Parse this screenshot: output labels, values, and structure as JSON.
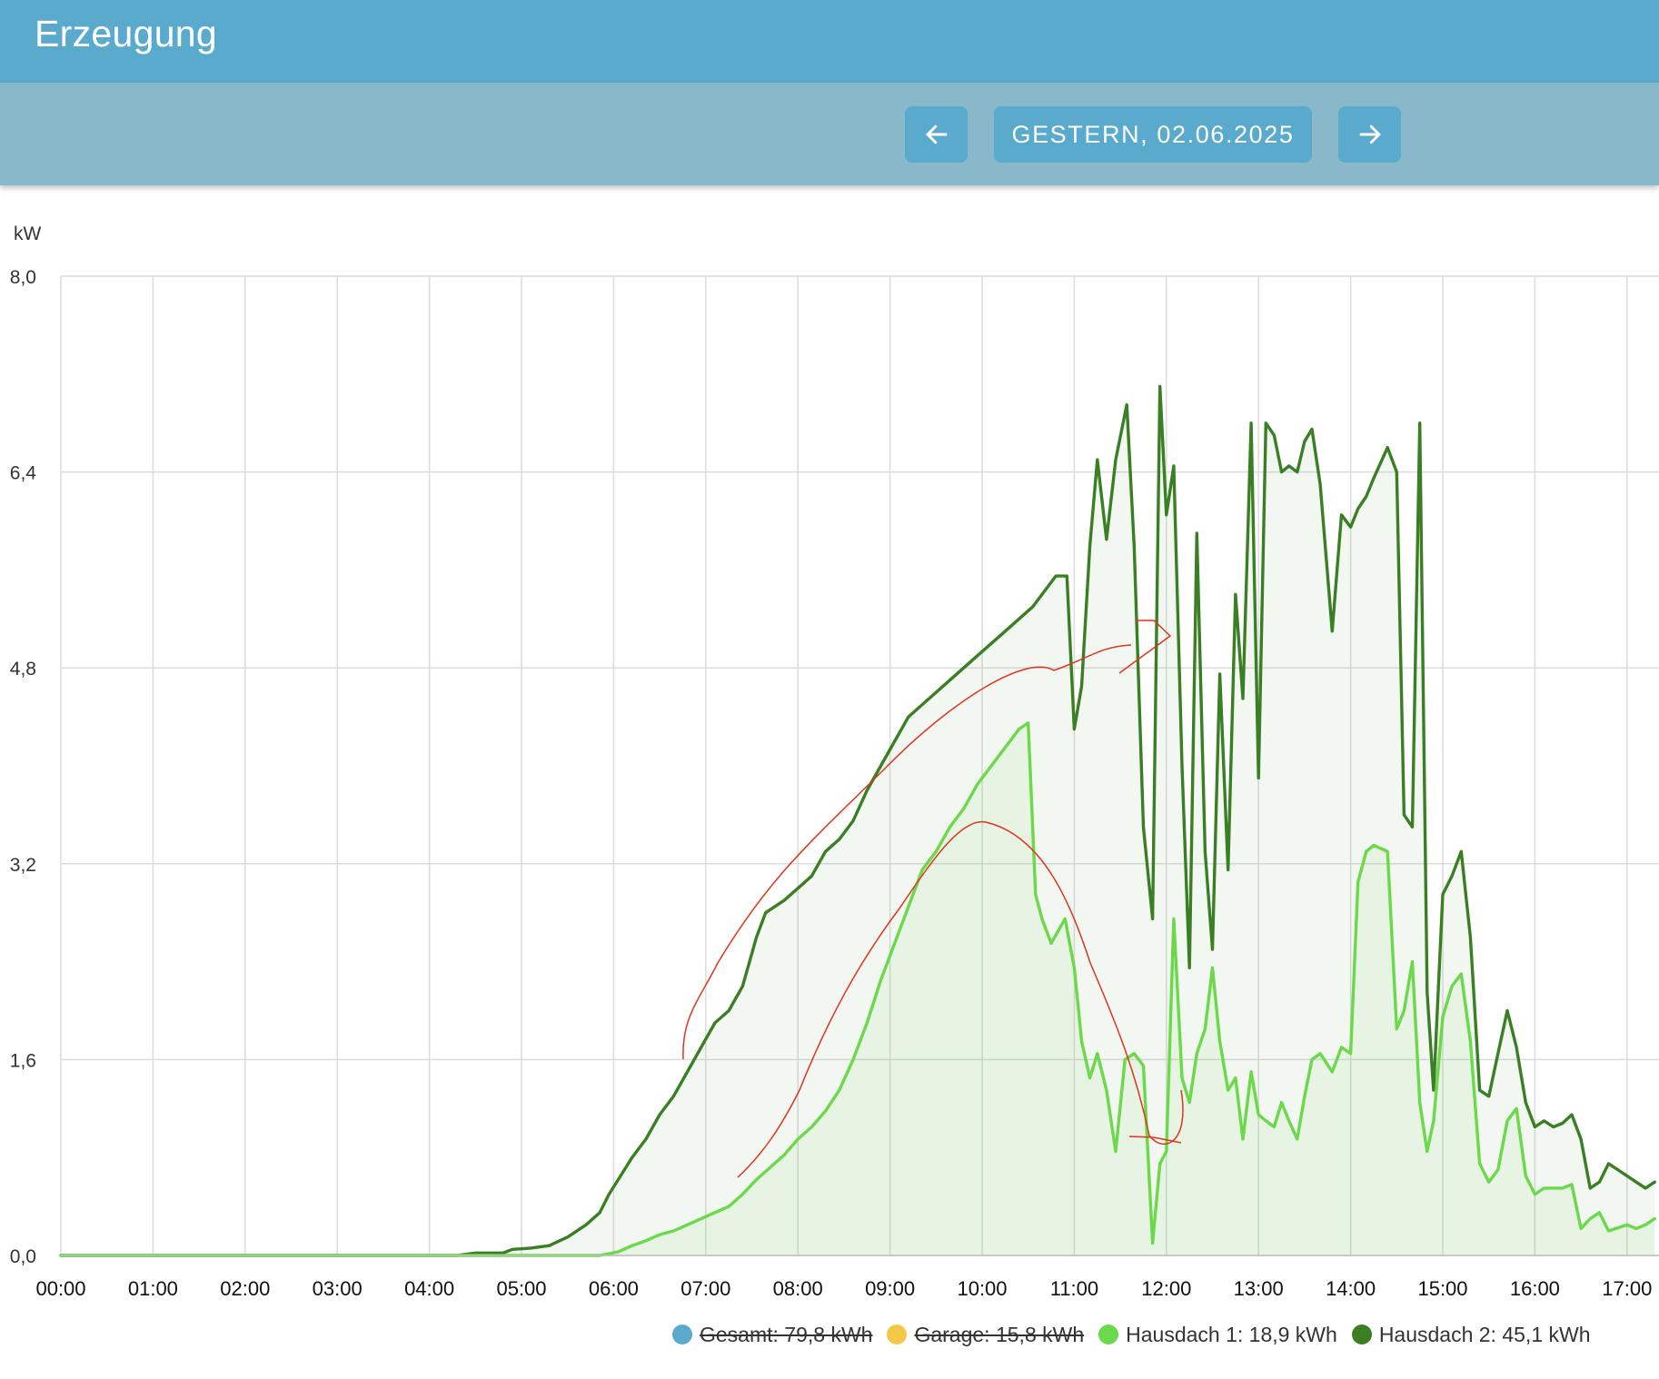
{
  "header": {
    "title": "Erzeugung"
  },
  "nav": {
    "prev_icon": "arrow-left-icon",
    "date_label": "GESTERN, 02.06.2025",
    "next_icon": "arrow-right-icon"
  },
  "colors": {
    "header_bg": "#5aaacd",
    "subbar_bg": "#88b8c9",
    "gesamt": "#5aaacd",
    "garage": "#f3c846",
    "hausdach1": "#6bd94a",
    "hausdach2": "#3a7f24",
    "annotation": "#e0341c"
  },
  "legend": [
    {
      "label": "Gesamt: 79,8 kWh",
      "color": "#5aaacd",
      "hidden": true
    },
    {
      "label": "Garage: 15,8 kWh",
      "color": "#f3c846",
      "hidden": true
    },
    {
      "label": "Hausdach 1: 18,9 kWh",
      "color": "#6bd94a",
      "hidden": false
    },
    {
      "label": "Hausdach 2: 45,1 kWh",
      "color": "#3a7f24",
      "hidden": false
    }
  ],
  "chart_data": {
    "type": "area",
    "unit_label": "kW",
    "ylim": [
      0,
      8
    ],
    "yticks": [
      "0,0",
      "1,6",
      "3,2",
      "4,8",
      "6,4",
      "8,0"
    ],
    "ytick_values": [
      0,
      1.6,
      3.2,
      4.8,
      6.4,
      8.0
    ],
    "xlim": [
      0,
      17.3
    ],
    "xticks": [
      "00:00",
      "01:00",
      "02:00",
      "03:00",
      "04:00",
      "05:00",
      "06:00",
      "07:00",
      "08:00",
      "09:00",
      "10:00",
      "11:00",
      "12:00",
      "13:00",
      "14:00",
      "15:00",
      "16:00",
      "17:00"
    ],
    "grid": true,
    "series": [
      {
        "name": "Hausdach 2",
        "x": [
          0,
          4.3,
          4.5,
          4.8,
          4.9,
          5.1,
          5.3,
          5.5,
          5.7,
          5.85,
          5.95,
          6.05,
          6.2,
          6.35,
          6.5,
          6.65,
          6.8,
          6.95,
          7.1,
          7.25,
          7.4,
          7.55,
          7.65,
          7.85,
          8.0,
          8.15,
          8.3,
          8.45,
          8.6,
          8.75,
          8.9,
          9.05,
          9.2,
          9.35,
          9.5,
          9.65,
          9.8,
          9.95,
          10.1,
          10.25,
          10.4,
          10.55,
          10.7,
          10.8,
          10.92,
          11.0,
          11.08,
          11.17,
          11.25,
          11.35,
          11.45,
          11.57,
          11.65,
          11.75,
          11.85,
          11.93,
          12.0,
          12.08,
          12.17,
          12.25,
          12.33,
          12.42,
          12.5,
          12.58,
          12.67,
          12.75,
          12.83,
          12.92,
          13.0,
          13.08,
          13.17,
          13.25,
          13.33,
          13.42,
          13.5,
          13.58,
          13.67,
          13.8,
          13.9,
          14.0,
          14.08,
          14.17,
          14.25,
          14.4,
          14.5,
          14.58,
          14.67,
          14.75,
          14.83,
          14.9,
          15.0,
          15.1,
          15.2,
          15.3,
          15.4,
          15.5,
          15.6,
          15.7,
          15.8,
          15.9,
          16.0,
          16.1,
          16.2,
          16.3,
          16.4,
          16.5,
          16.6,
          16.7,
          16.8,
          17.0,
          17.1,
          17.2,
          17.3
        ],
        "y": [
          0,
          0,
          0.02,
          0.02,
          0.05,
          0.06,
          0.08,
          0.15,
          0.25,
          0.35,
          0.5,
          0.62,
          0.8,
          0.95,
          1.15,
          1.3,
          1.5,
          1.7,
          1.9,
          2.0,
          2.2,
          2.6,
          2.8,
          2.9,
          3.0,
          3.1,
          3.3,
          3.4,
          3.55,
          3.8,
          4.0,
          4.2,
          4.4,
          4.5,
          4.6,
          4.7,
          4.8,
          4.9,
          5.0,
          5.1,
          5.2,
          5.3,
          5.45,
          5.55,
          5.55,
          4.3,
          4.65,
          5.8,
          6.5,
          5.85,
          6.5,
          6.95,
          5.8,
          3.5,
          2.75,
          7.1,
          6.05,
          6.45,
          4.0,
          2.35,
          5.9,
          3.3,
          2.5,
          4.75,
          3.15,
          5.4,
          4.55,
          6.8,
          3.9,
          6.8,
          6.7,
          6.4,
          6.45,
          6.4,
          6.65,
          6.75,
          6.3,
          5.1,
          6.05,
          5.95,
          6.1,
          6.2,
          6.35,
          6.6,
          6.4,
          3.6,
          3.5,
          6.8,
          2.15,
          1.35,
          2.95,
          3.1,
          3.3,
          2.6,
          1.35,
          1.3,
          1.65,
          2.0,
          1.7,
          1.25,
          1.05,
          1.1,
          1.05,
          1.08,
          1.15,
          0.95,
          0.55,
          0.6,
          0.75,
          0.65,
          0.6,
          0.55,
          0.6
        ]
      },
      {
        "name": "Hausdach 1",
        "x": [
          0,
          5.85,
          6.05,
          6.2,
          6.35,
          6.5,
          6.65,
          6.8,
          6.95,
          7.1,
          7.25,
          7.4,
          7.55,
          7.7,
          7.85,
          8.0,
          8.15,
          8.3,
          8.45,
          8.6,
          8.75,
          8.9,
          9.05,
          9.2,
          9.35,
          9.5,
          9.65,
          9.8,
          9.95,
          10.1,
          10.25,
          10.4,
          10.5,
          10.58,
          10.65,
          10.75,
          10.9,
          11.0,
          11.08,
          11.17,
          11.25,
          11.35,
          11.45,
          11.55,
          11.65,
          11.75,
          11.85,
          11.93,
          12.0,
          12.08,
          12.17,
          12.25,
          12.33,
          12.42,
          12.5,
          12.58,
          12.67,
          12.75,
          12.83,
          12.92,
          13.0,
          13.08,
          13.17,
          13.25,
          13.33,
          13.42,
          13.5,
          13.58,
          13.67,
          13.8,
          13.9,
          14.0,
          14.08,
          14.17,
          14.25,
          14.4,
          14.5,
          14.58,
          14.67,
          14.75,
          14.83,
          14.9,
          15.0,
          15.1,
          15.2,
          15.3,
          15.4,
          15.5,
          15.6,
          15.7,
          15.8,
          15.9,
          16.0,
          16.1,
          16.2,
          16.3,
          16.4,
          16.5,
          16.6,
          16.7,
          16.8,
          17.0,
          17.1,
          17.2,
          17.3
        ],
        "y": [
          0,
          0,
          0.03,
          0.08,
          0.12,
          0.17,
          0.2,
          0.25,
          0.3,
          0.35,
          0.4,
          0.5,
          0.62,
          0.72,
          0.82,
          0.95,
          1.05,
          1.18,
          1.35,
          1.6,
          1.9,
          2.25,
          2.55,
          2.85,
          3.15,
          3.3,
          3.5,
          3.65,
          3.85,
          4.0,
          4.15,
          4.3,
          4.35,
          2.95,
          2.75,
          2.55,
          2.75,
          2.35,
          1.75,
          1.45,
          1.65,
          1.35,
          0.85,
          1.6,
          1.65,
          1.55,
          0.1,
          0.75,
          0.85,
          2.75,
          1.45,
          1.25,
          1.65,
          1.85,
          2.35,
          1.75,
          1.35,
          1.45,
          0.95,
          1.5,
          1.15,
          1.1,
          1.05,
          1.25,
          1.1,
          0.95,
          1.3,
          1.6,
          1.65,
          1.5,
          1.7,
          1.65,
          3.05,
          3.3,
          3.35,
          3.3,
          1.85,
          2.0,
          2.4,
          1.25,
          0.85,
          1.1,
          1.95,
          2.2,
          2.3,
          1.75,
          0.75,
          0.6,
          0.7,
          1.1,
          1.2,
          0.65,
          0.5,
          0.55,
          0.55,
          0.55,
          0.58,
          0.22,
          0.3,
          0.35,
          0.2,
          0.25,
          0.22,
          0.25,
          0.3
        ]
      }
    ]
  }
}
